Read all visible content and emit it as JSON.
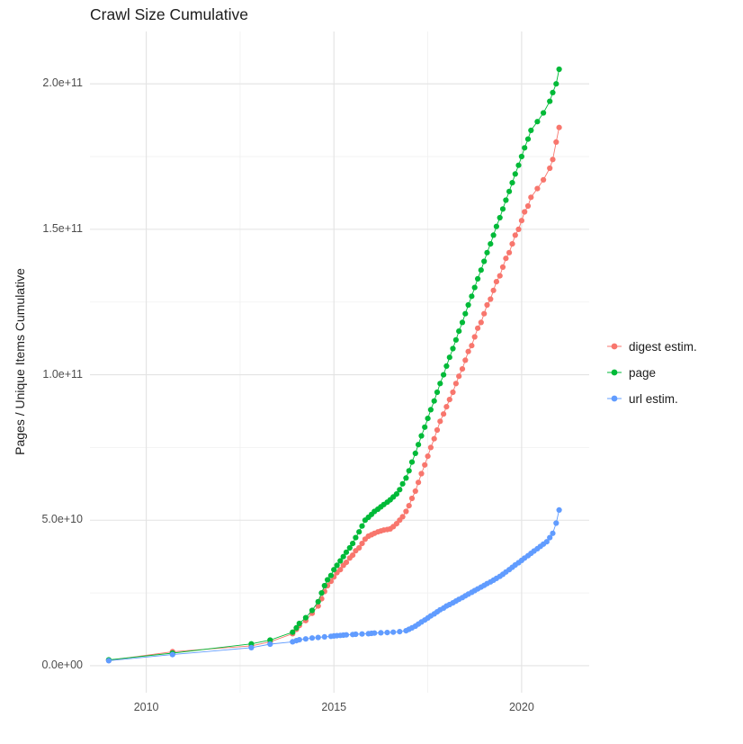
{
  "title": "Crawl Size Cumulative",
  "y_axis_label": "Pages / Unique Items Cumulative",
  "legend": [
    {
      "label": "digest estim.",
      "color": "#F8766D"
    },
    {
      "label": "page",
      "color": "#00BA38"
    },
    {
      "label": "url estim.",
      "color": "#619CFF"
    }
  ],
  "colors": {
    "grid_major": "#e3e3e3",
    "grid_minor": "#f0f0f0",
    "tick_text": "#4d4d4d",
    "title_text": "#1c1c1c"
  },
  "chart_data": {
    "type": "scatter",
    "title": "Crawl Size Cumulative",
    "xlabel": "",
    "ylabel": "Pages / Unique Items Cumulative",
    "xlim": [
      2008.5,
      2021.8
    ],
    "ylim": [
      -9300000000.0,
      218000000000.0
    ],
    "grid": true,
    "legend_position": "right",
    "x_major_ticks": [
      2010,
      2015,
      2020
    ],
    "x_tick_labels": [
      "2010",
      "2015",
      "2020"
    ],
    "x_minor_ticks": [
      2012.5,
      2017.5
    ],
    "y_major_ticks": [
      0,
      50000000000.0,
      100000000000.0,
      150000000000.0,
      200000000000.0
    ],
    "y_tick_labels": [
      "0.0e+00",
      "5.0e+10",
      "1.0e+11",
      "1.5e+11",
      "2.0e+11"
    ],
    "y_minor_ticks": [
      25000000000.0,
      75000000000.0,
      125000000000.0,
      175000000000.0
    ],
    "series": [
      {
        "name": "digest estim.",
        "color": "#F8766D",
        "points": [
          [
            2009.0,
            1800000000.0
          ],
          [
            2010.7,
            4800000000.0
          ],
          [
            2012.8,
            6800000000.0
          ],
          [
            2013.3,
            8200000000.0
          ],
          [
            2013.9,
            11000000000.0
          ],
          [
            2014.0,
            12500000000.0
          ],
          [
            2014.08,
            13800000000.0
          ],
          [
            2014.25,
            15500000000.0
          ],
          [
            2014.42,
            18000000000.0
          ],
          [
            2014.58,
            20500000000.0
          ],
          [
            2014.67,
            23000000000.0
          ],
          [
            2014.75,
            25500000000.0
          ],
          [
            2014.83,
            27500000000.0
          ],
          [
            2014.92,
            29000000000.0
          ],
          [
            2015.0,
            30500000000.0
          ],
          [
            2015.08,
            32000000000.0
          ],
          [
            2015.17,
            33000000000.0
          ],
          [
            2015.25,
            34500000000.0
          ],
          [
            2015.33,
            35500000000.0
          ],
          [
            2015.42,
            37000000000.0
          ],
          [
            2015.5,
            38000000000.0
          ],
          [
            2015.58,
            39500000000.0
          ],
          [
            2015.67,
            40500000000.0
          ],
          [
            2015.75,
            42000000000.0
          ],
          [
            2015.83,
            43500000000.0
          ],
          [
            2015.92,
            44500000000.0
          ],
          [
            2016.0,
            45000000000.0
          ],
          [
            2016.08,
            45500000000.0
          ],
          [
            2016.17,
            46000000000.0
          ],
          [
            2016.25,
            46300000000.0
          ],
          [
            2016.33,
            46600000000.0
          ],
          [
            2016.42,
            46800000000.0
          ],
          [
            2016.5,
            47000000000.0
          ],
          [
            2016.58,
            47800000000.0
          ],
          [
            2016.67,
            48800000000.0
          ],
          [
            2016.75,
            50000000000.0
          ],
          [
            2016.83,
            51200000000.0
          ],
          [
            2016.92,
            53000000000.0
          ],
          [
            2017.0,
            55000000000.0
          ],
          [
            2017.08,
            57500000000.0
          ],
          [
            2017.17,
            60000000000.0
          ],
          [
            2017.25,
            63000000000.0
          ],
          [
            2017.33,
            66000000000.0
          ],
          [
            2017.42,
            69000000000.0
          ],
          [
            2017.5,
            72000000000.0
          ],
          [
            2017.58,
            75000000000.0
          ],
          [
            2017.67,
            78000000000.0
          ],
          [
            2017.75,
            81000000000.0
          ],
          [
            2017.83,
            84000000000.0
          ],
          [
            2017.92,
            86500000000.0
          ],
          [
            2018.0,
            89000000000.0
          ],
          [
            2018.08,
            91500000000.0
          ],
          [
            2018.17,
            94000000000.0
          ],
          [
            2018.25,
            97000000000.0
          ],
          [
            2018.33,
            99500000000.0
          ],
          [
            2018.42,
            102000000000.0
          ],
          [
            2018.5,
            105000000000.0
          ],
          [
            2018.58,
            108000000000.0
          ],
          [
            2018.67,
            110000000000.0
          ],
          [
            2018.75,
            113000000000.0
          ],
          [
            2018.83,
            116000000000.0
          ],
          [
            2018.92,
            118000000000.0
          ],
          [
            2019.0,
            121000000000.0
          ],
          [
            2019.08,
            124000000000.0
          ],
          [
            2019.17,
            126000000000.0
          ],
          [
            2019.25,
            129000000000.0
          ],
          [
            2019.33,
            132000000000.0
          ],
          [
            2019.42,
            134000000000.0
          ],
          [
            2019.5,
            137000000000.0
          ],
          [
            2019.58,
            140000000000.0
          ],
          [
            2019.67,
            142000000000.0
          ],
          [
            2019.75,
            145000000000.0
          ],
          [
            2019.83,
            148000000000.0
          ],
          [
            2019.92,
            150000000000.0
          ],
          [
            2020.0,
            153000000000.0
          ],
          [
            2020.08,
            156000000000.0
          ],
          [
            2020.17,
            158000000000.0
          ],
          [
            2020.25,
            161000000000.0
          ],
          [
            2020.42,
            164000000000.0
          ],
          [
            2020.58,
            167000000000.0
          ],
          [
            2020.75,
            171000000000.0
          ],
          [
            2020.83,
            174000000000.0
          ],
          [
            2020.92,
            180000000000.0
          ],
          [
            2021.0,
            185000000000.0
          ]
        ]
      },
      {
        "name": "page",
        "color": "#00BA38",
        "points": [
          [
            2009.0,
            2000000000.0
          ],
          [
            2010.7,
            4300000000.0
          ],
          [
            2012.8,
            7500000000.0
          ],
          [
            2013.3,
            8800000000.0
          ],
          [
            2013.9,
            11500000000.0
          ],
          [
            2014.0,
            13000000000.0
          ],
          [
            2014.08,
            14500000000.0
          ],
          [
            2014.25,
            16500000000.0
          ],
          [
            2014.42,
            19000000000.0
          ],
          [
            2014.58,
            22000000000.0
          ],
          [
            2014.67,
            25000000000.0
          ],
          [
            2014.75,
            27500000000.0
          ],
          [
            2014.83,
            29500000000.0
          ],
          [
            2014.92,
            31000000000.0
          ],
          [
            2015.0,
            33000000000.0
          ],
          [
            2015.08,
            34500000000.0
          ],
          [
            2015.17,
            36000000000.0
          ],
          [
            2015.25,
            37500000000.0
          ],
          [
            2015.33,
            39000000000.0
          ],
          [
            2015.42,
            40500000000.0
          ],
          [
            2015.5,
            42000000000.0
          ],
          [
            2015.58,
            44000000000.0
          ],
          [
            2015.67,
            46000000000.0
          ],
          [
            2015.75,
            48000000000.0
          ],
          [
            2015.83,
            50000000000.0
          ],
          [
            2015.92,
            51000000000.0
          ],
          [
            2016.0,
            52000000000.0
          ],
          [
            2016.08,
            53000000000.0
          ],
          [
            2016.17,
            53800000000.0
          ],
          [
            2016.25,
            54600000000.0
          ],
          [
            2016.33,
            55400000000.0
          ],
          [
            2016.42,
            56200000000.0
          ],
          [
            2016.5,
            57000000000.0
          ],
          [
            2016.58,
            58000000000.0
          ],
          [
            2016.67,
            59000000000.0
          ],
          [
            2016.75,
            60500000000.0
          ],
          [
            2016.83,
            62500000000.0
          ],
          [
            2016.92,
            64500000000.0
          ],
          [
            2017.0,
            67000000000.0
          ],
          [
            2017.08,
            70000000000.0
          ],
          [
            2017.17,
            73000000000.0
          ],
          [
            2017.25,
            76000000000.0
          ],
          [
            2017.33,
            79000000000.0
          ],
          [
            2017.42,
            82000000000.0
          ],
          [
            2017.5,
            85000000000.0
          ],
          [
            2017.58,
            88000000000.0
          ],
          [
            2017.67,
            91000000000.0
          ],
          [
            2017.75,
            94000000000.0
          ],
          [
            2017.83,
            97000000000.0
          ],
          [
            2017.92,
            100000000000.0
          ],
          [
            2018.0,
            103000000000.0
          ],
          [
            2018.08,
            106000000000.0
          ],
          [
            2018.17,
            109000000000.0
          ],
          [
            2018.25,
            112000000000.0
          ],
          [
            2018.33,
            115000000000.0
          ],
          [
            2018.42,
            118000000000.0
          ],
          [
            2018.5,
            121000000000.0
          ],
          [
            2018.58,
            124000000000.0
          ],
          [
            2018.67,
            127000000000.0
          ],
          [
            2018.75,
            130000000000.0
          ],
          [
            2018.83,
            133000000000.0
          ],
          [
            2018.92,
            136000000000.0
          ],
          [
            2019.0,
            139000000000.0
          ],
          [
            2019.08,
            142000000000.0
          ],
          [
            2019.17,
            145000000000.0
          ],
          [
            2019.25,
            148000000000.0
          ],
          [
            2019.33,
            151000000000.0
          ],
          [
            2019.42,
            154000000000.0
          ],
          [
            2019.5,
            157000000000.0
          ],
          [
            2019.58,
            160000000000.0
          ],
          [
            2019.67,
            163000000000.0
          ],
          [
            2019.75,
            166000000000.0
          ],
          [
            2019.83,
            169000000000.0
          ],
          [
            2019.92,
            172000000000.0
          ],
          [
            2020.0,
            175000000000.0
          ],
          [
            2020.08,
            178000000000.0
          ],
          [
            2020.17,
            181000000000.0
          ],
          [
            2020.25,
            184000000000.0
          ],
          [
            2020.42,
            187000000000.0
          ],
          [
            2020.58,
            190000000000.0
          ],
          [
            2020.75,
            194000000000.0
          ],
          [
            2020.83,
            197000000000.0
          ],
          [
            2020.92,
            200000000000.0
          ],
          [
            2021.0,
            205000000000.0
          ]
        ]
      },
      {
        "name": "url estim.",
        "color": "#619CFF",
        "points": [
          [
            2009.0,
            1700000000.0
          ],
          [
            2010.7,
            3800000000.0
          ],
          [
            2012.8,
            6200000000.0
          ],
          [
            2013.3,
            7400000000.0
          ],
          [
            2013.9,
            8200000000.0
          ],
          [
            2014.0,
            8600000000.0
          ],
          [
            2014.08,
            8900000000.0
          ],
          [
            2014.25,
            9200000000.0
          ],
          [
            2014.42,
            9500000000.0
          ],
          [
            2014.58,
            9700000000.0
          ],
          [
            2014.75,
            9900000000.0
          ],
          [
            2014.92,
            10100000000.0
          ],
          [
            2015.0,
            10200000000.0
          ],
          [
            2015.08,
            10300000000.0
          ],
          [
            2015.17,
            10400000000.0
          ],
          [
            2015.25,
            10500000000.0
          ],
          [
            2015.33,
            10600000000.0
          ],
          [
            2015.5,
            10700000000.0
          ],
          [
            2015.58,
            10800000000.0
          ],
          [
            2015.75,
            10900000000.0
          ],
          [
            2015.92,
            11000000000.0
          ],
          [
            2016.0,
            11100000000.0
          ],
          [
            2016.08,
            11200000000.0
          ],
          [
            2016.25,
            11300000000.0
          ],
          [
            2016.42,
            11400000000.0
          ],
          [
            2016.58,
            11500000000.0
          ],
          [
            2016.75,
            11700000000.0
          ],
          [
            2016.92,
            12000000000.0
          ],
          [
            2017.0,
            12500000000.0
          ],
          [
            2017.08,
            13000000000.0
          ],
          [
            2017.17,
            13600000000.0
          ],
          [
            2017.25,
            14300000000.0
          ],
          [
            2017.33,
            15000000000.0
          ],
          [
            2017.42,
            15700000000.0
          ],
          [
            2017.5,
            16400000000.0
          ],
          [
            2017.58,
            17100000000.0
          ],
          [
            2017.67,
            17800000000.0
          ],
          [
            2017.75,
            18500000000.0
          ],
          [
            2017.83,
            19200000000.0
          ],
          [
            2017.92,
            19800000000.0
          ],
          [
            2018.0,
            20500000000.0
          ],
          [
            2018.08,
            21000000000.0
          ],
          [
            2018.17,
            21600000000.0
          ],
          [
            2018.25,
            22200000000.0
          ],
          [
            2018.33,
            22800000000.0
          ],
          [
            2018.42,
            23400000000.0
          ],
          [
            2018.5,
            24000000000.0
          ],
          [
            2018.58,
            24600000000.0
          ],
          [
            2018.67,
            25200000000.0
          ],
          [
            2018.75,
            25800000000.0
          ],
          [
            2018.83,
            26400000000.0
          ],
          [
            2018.92,
            27000000000.0
          ],
          [
            2019.0,
            27600000000.0
          ],
          [
            2019.08,
            28200000000.0
          ],
          [
            2019.17,
            28800000000.0
          ],
          [
            2019.25,
            29400000000.0
          ],
          [
            2019.33,
            30000000000.0
          ],
          [
            2019.42,
            30700000000.0
          ],
          [
            2019.5,
            31400000000.0
          ],
          [
            2019.58,
            32200000000.0
          ],
          [
            2019.67,
            33000000000.0
          ],
          [
            2019.75,
            33800000000.0
          ],
          [
            2019.83,
            34600000000.0
          ],
          [
            2019.92,
            35400000000.0
          ],
          [
            2020.0,
            36200000000.0
          ],
          [
            2020.08,
            37000000000.0
          ],
          [
            2020.17,
            37800000000.0
          ],
          [
            2020.25,
            38600000000.0
          ],
          [
            2020.33,
            39400000000.0
          ],
          [
            2020.42,
            40200000000.0
          ],
          [
            2020.5,
            41000000000.0
          ],
          [
            2020.58,
            41800000000.0
          ],
          [
            2020.67,
            42600000000.0
          ],
          [
            2020.75,
            44000000000.0
          ],
          [
            2020.83,
            45500000000.0
          ],
          [
            2020.92,
            49000000000.0
          ],
          [
            2021.0,
            53500000000.0
          ]
        ]
      }
    ]
  }
}
